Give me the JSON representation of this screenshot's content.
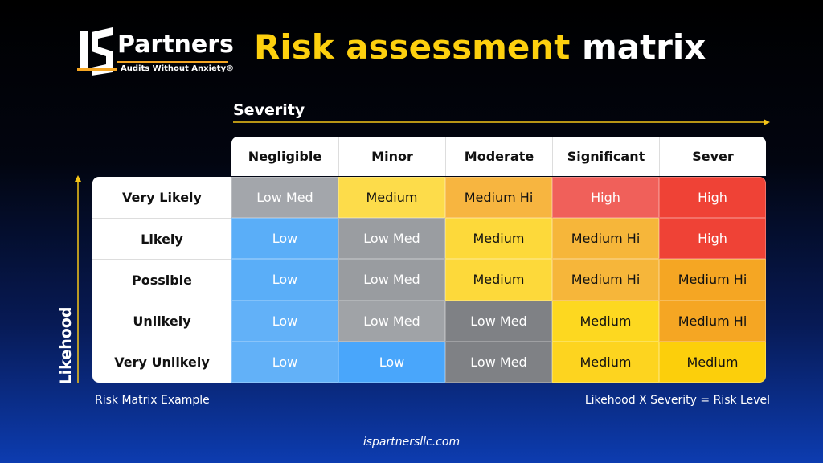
{
  "logo": {
    "name": "Partners",
    "tagline": "Audits Without Anxiety®"
  },
  "title": {
    "highlight": "Risk assessment",
    "rest": "matrix"
  },
  "axis": {
    "x_label": "Severity",
    "y_label": "Likehood"
  },
  "table": {
    "columns": [
      "Negligible",
      "Minor",
      "Moderate",
      "Significant",
      "Sever"
    ],
    "rows": [
      {
        "label": "Very Likely",
        "cells": [
          {
            "text": "Low Med",
            "color": "#a3a6ab",
            "text_color": "#ffffff"
          },
          {
            "text": "Medium",
            "color": "#fddc4a",
            "text_color": "#111111"
          },
          {
            "text": "Medium Hi",
            "color": "#f7b540",
            "text_color": "#111111"
          },
          {
            "text": "High",
            "color": "#f0605a",
            "text_color": "#ffffff"
          },
          {
            "text": "High",
            "color": "#ef4236",
            "text_color": "#ffffff"
          }
        ]
      },
      {
        "label": "Likely",
        "cells": [
          {
            "text": "Low",
            "color": "#5aaef8",
            "text_color": "#ffffff"
          },
          {
            "text": "Low Med",
            "color": "#9a9da1",
            "text_color": "#ffffff"
          },
          {
            "text": "Medium",
            "color": "#fdd93a",
            "text_color": "#111111"
          },
          {
            "text": "Medium Hi",
            "color": "#f6b63a",
            "text_color": "#111111"
          },
          {
            "text": "High",
            "color": "#ef4236",
            "text_color": "#ffffff"
          }
        ]
      },
      {
        "label": "Possible",
        "cells": [
          {
            "text": "Low",
            "color": "#5aaef8",
            "text_color": "#ffffff"
          },
          {
            "text": "Low Med",
            "color": "#999ca0",
            "text_color": "#ffffff"
          },
          {
            "text": "Medium",
            "color": "#fdd93a",
            "text_color": "#111111"
          },
          {
            "text": "Medium Hi",
            "color": "#f6b63a",
            "text_color": "#111111"
          },
          {
            "text": "Medium Hi",
            "color": "#f5a623",
            "text_color": "#111111"
          }
        ]
      },
      {
        "label": "Unlikely",
        "cells": [
          {
            "text": "Low",
            "color": "#62b1f8",
            "text_color": "#ffffff"
          },
          {
            "text": "Low Med",
            "color": "#a0a3a7",
            "text_color": "#ffffff"
          },
          {
            "text": "Low Med",
            "color": "#7f8185",
            "text_color": "#ffffff"
          },
          {
            "text": "Medium",
            "color": "#fdd820",
            "text_color": "#111111"
          },
          {
            "text": "Medium Hi",
            "color": "#f5a623",
            "text_color": "#111111"
          }
        ]
      },
      {
        "label": "Very Unlikely",
        "cells": [
          {
            "text": "Low",
            "color": "#62b1f8",
            "text_color": "#ffffff"
          },
          {
            "text": "Low",
            "color": "#49a6fb",
            "text_color": "#ffffff"
          },
          {
            "text": "Low Med",
            "color": "#7f8185",
            "text_color": "#ffffff"
          },
          {
            "text": "Medium",
            "color": "#fdd41f",
            "text_color": "#111111"
          },
          {
            "text": "Medium",
            "color": "#fccf0b",
            "text_color": "#111111"
          }
        ]
      }
    ]
  },
  "footer": {
    "left": "Risk Matrix Example",
    "right": "Likehood X Severity = Risk Level",
    "url": "ispartnersllc.com"
  }
}
